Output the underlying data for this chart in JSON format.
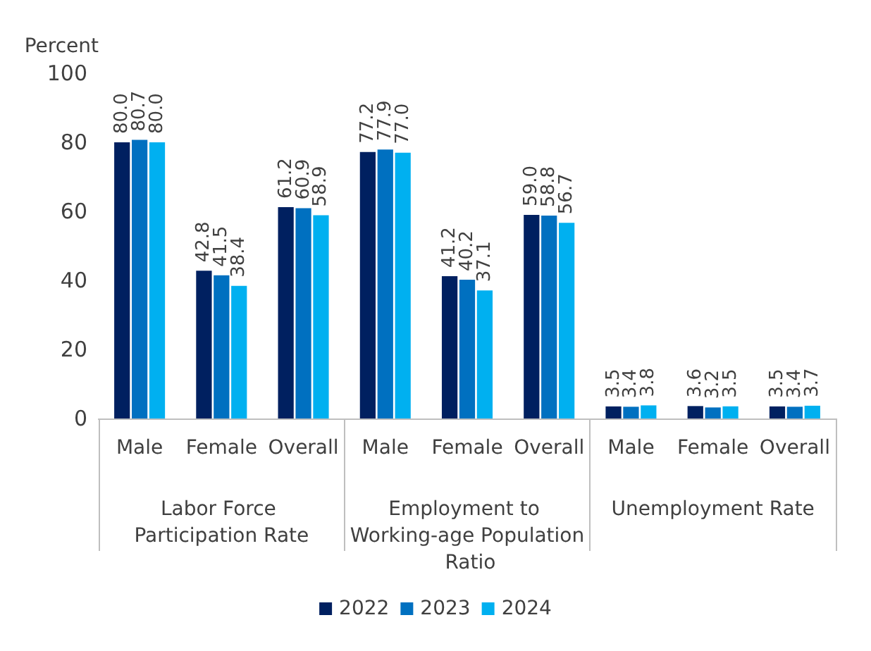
{
  "chart_data": {
    "type": "bar",
    "ylabel": "Percent",
    "categories": [
      "Male",
      "Female",
      "Overall",
      "Male",
      "Female",
      "Overall",
      "Male",
      "Female",
      "Overall"
    ],
    "annotations": [
      "Labor Force Participation Rate",
      "Employment to Working-age Population Ratio",
      "Unemployment Rate"
    ],
    "series": [
      {
        "name": "2022",
        "color": "#002060",
        "values": [
          80.0,
          42.8,
          61.2,
          77.2,
          41.2,
          59.0,
          3.5,
          3.6,
          3.5
        ],
        "value_labels": [
          "80.0",
          "42.8",
          "61.2",
          "77.2",
          "41.2",
          "59.0",
          "3.5",
          "3.6",
          "3.5"
        ]
      },
      {
        "name": "2023",
        "color": "#0070c0",
        "values": [
          80.7,
          41.5,
          60.9,
          77.9,
          40.2,
          58.8,
          3.4,
          3.2,
          3.4
        ],
        "value_labels": [
          "80.7",
          "41.5",
          "60.9",
          "77.9",
          "40.2",
          "58.8",
          "3.4",
          "3.2",
          "3.4"
        ]
      },
      {
        "name": "2024",
        "color": "#00b0f0",
        "values": [
          80.0,
          38.4,
          58.9,
          77.0,
          37.1,
          56.7,
          3.8,
          3.5,
          3.7
        ],
        "value_labels": [
          "80.0",
          "38.4",
          "58.9",
          "77.0",
          "37.1",
          "56.7",
          "3.8",
          "3.5",
          "3.7"
        ]
      }
    ],
    "ylim": [
      0,
      100
    ],
    "yticks": [
      0,
      20,
      40,
      60,
      80,
      100
    ],
    "grid": false,
    "legend": "bottom"
  }
}
